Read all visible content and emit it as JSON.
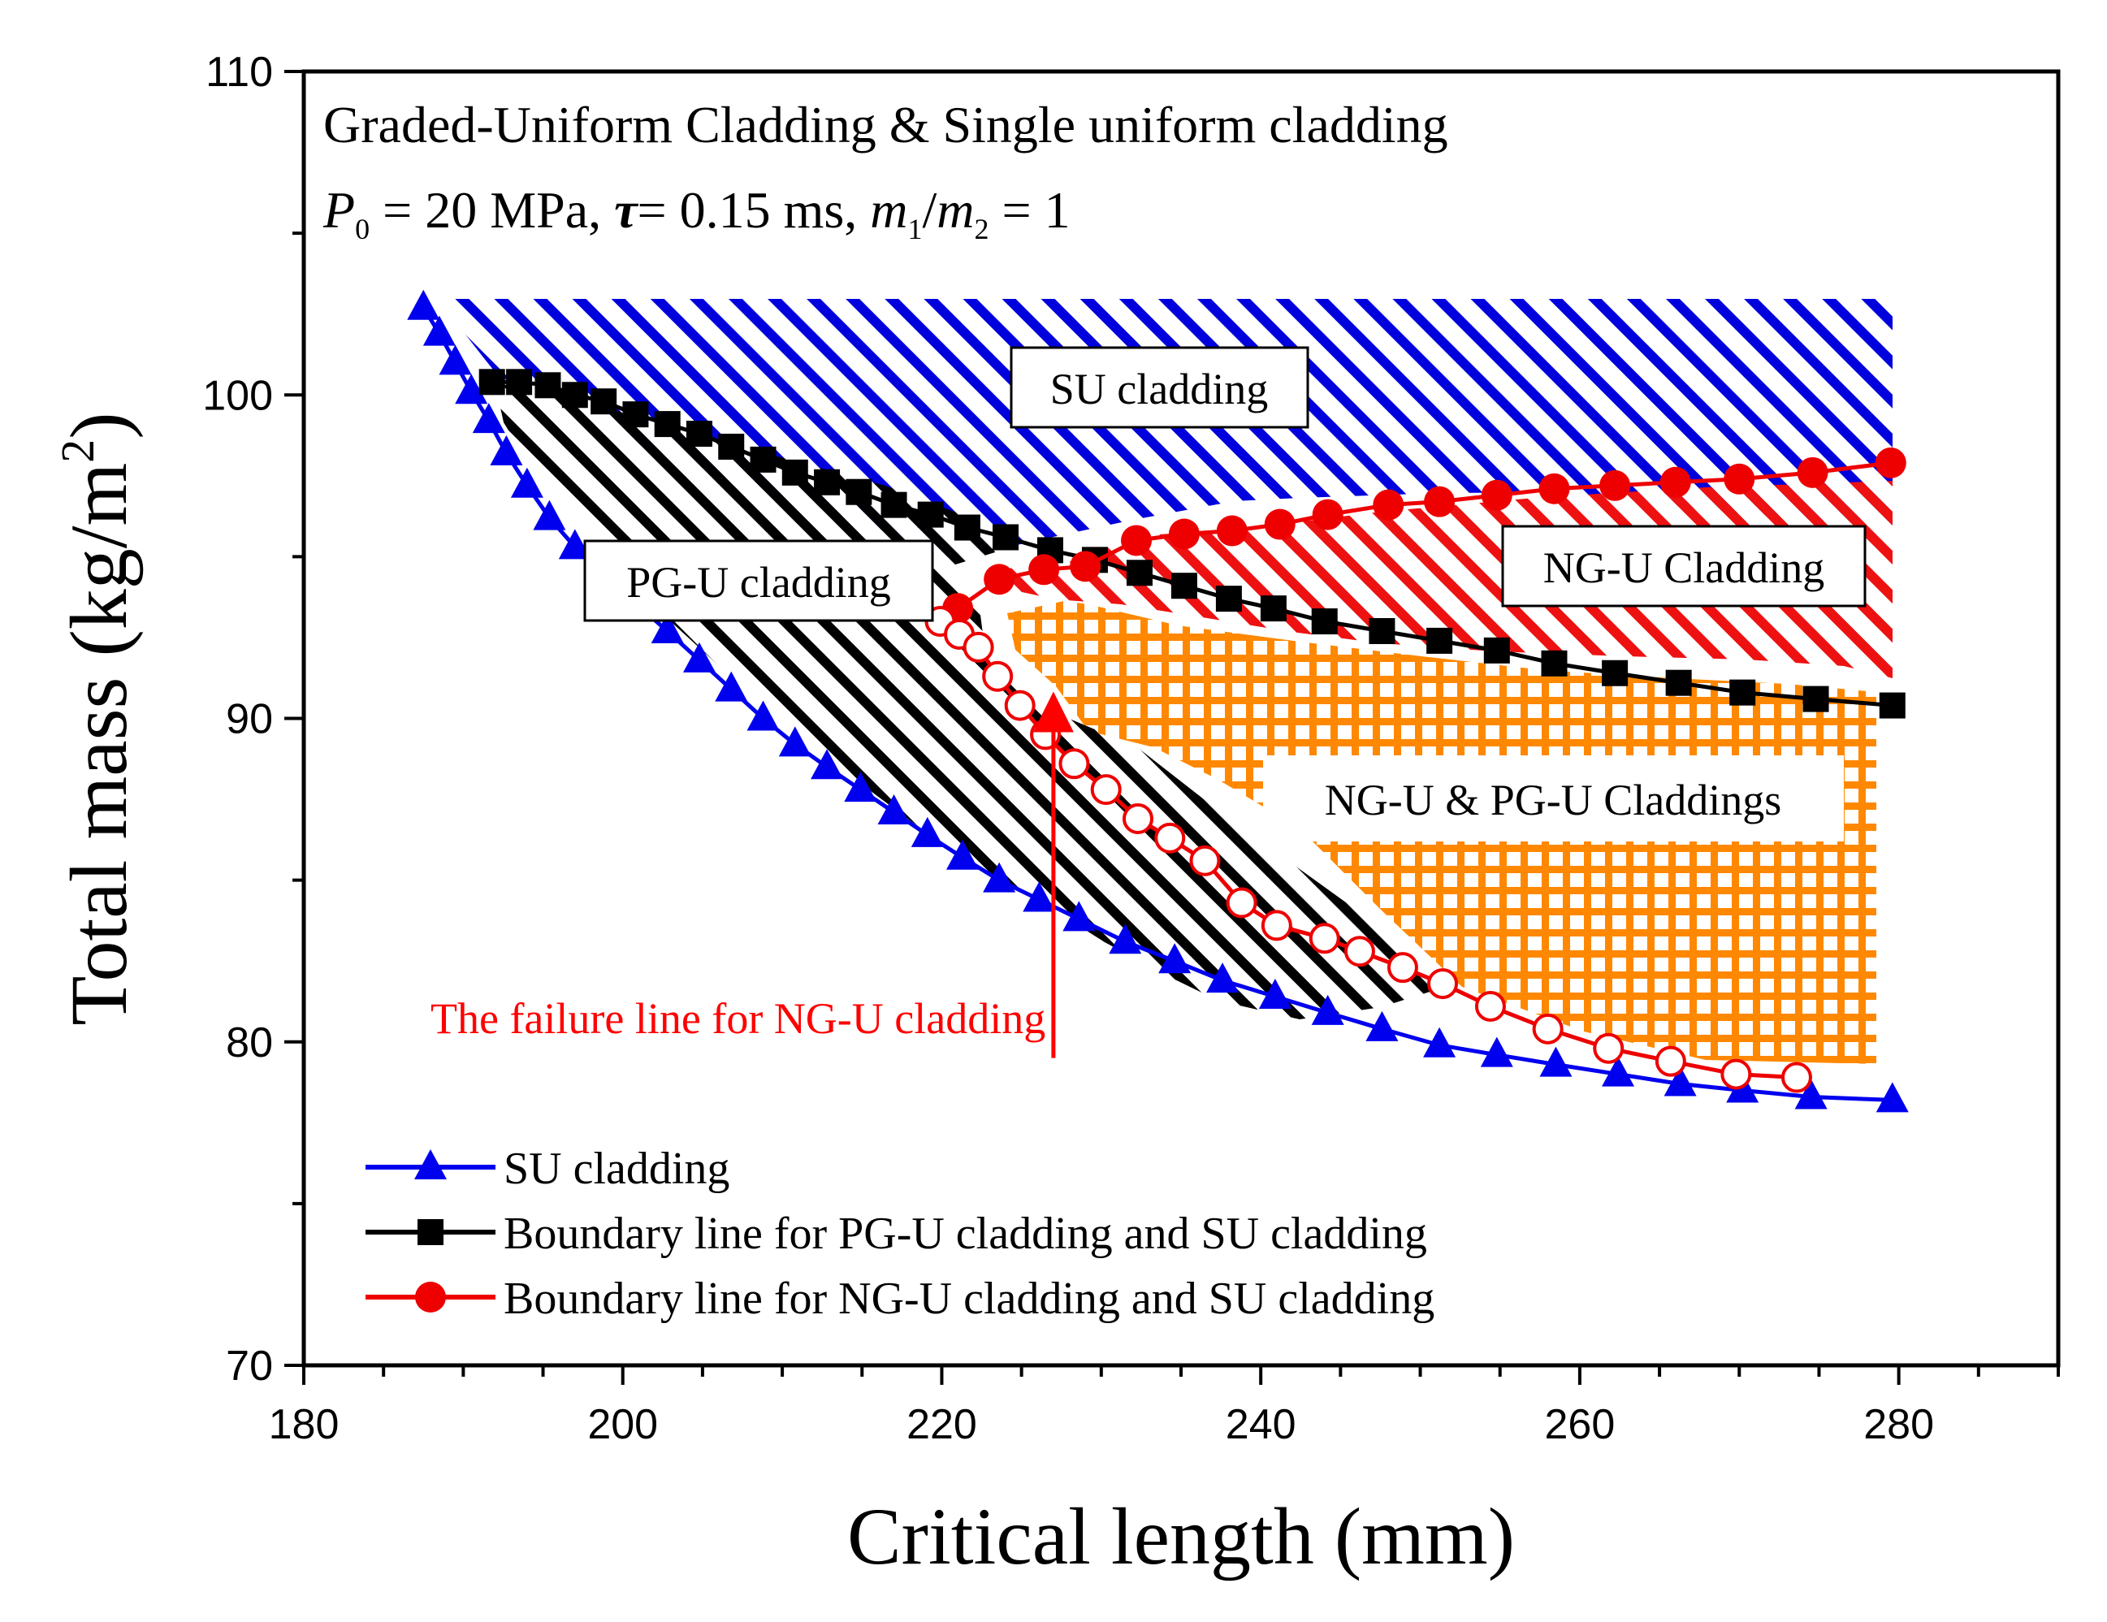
{
  "chart_data": {
    "type": "line",
    "title_line1": "Graded-Uniform Cladding & Single uniform cladding",
    "params": {
      "p_sym": "P",
      "p_sub": "0",
      "p_rest": " = 20 MPa, ",
      "tau_sym": "τ",
      "tau_rest": "= 0.15 ms, ",
      "m1_sym": "m",
      "m1_sub": "1",
      "slash": "/",
      "m2_sym": "m",
      "m2_sub": "2",
      "ratio_rest": " = 1"
    },
    "xlabel": "Critical length (mm)",
    "ylabel_main": "Total mass (kg/m",
    "ylabel_sup": "2",
    "ylabel_close": ")",
    "xlim": [
      180,
      290
    ],
    "ylim": [
      70,
      110
    ],
    "x_ticks": [
      "180",
      "200",
      "220",
      "240",
      "260",
      "280"
    ],
    "y_ticks": [
      "70",
      "80",
      "90",
      "100",
      "110"
    ],
    "regions": [
      {
        "name": "SU cladding",
        "color": "#0000dd"
      },
      {
        "name": "PG-U cladding",
        "color": "#000000"
      },
      {
        "name": "NG-U Cladding",
        "color": "#ee1111"
      },
      {
        "name": "NG-U & PG-U Claddings",
        "color": "#ff8800"
      }
    ],
    "annotation": {
      "text": "The failure line for NG-U cladding",
      "color": "#ff0000",
      "arrow_x": 227,
      "arrow_y_from": 79.5,
      "arrow_y_to": 90.2
    },
    "series": [
      {
        "name": "SU cladding",
        "color": "#0000ee",
        "marker": "triangle",
        "x": [
          187.5,
          188.5,
          189.5,
          190.5,
          191.6,
          192.7,
          194.0,
          195.4,
          197.0,
          198.7,
          200.7,
          202.8,
          204.8,
          206.8,
          208.8,
          210.8,
          212.8,
          214.9,
          217.0,
          219.1,
          221.3,
          223.6,
          226.1,
          228.6,
          231.5,
          234.6,
          237.6,
          240.9,
          244.2,
          247.6,
          251.2,
          254.8,
          258.5,
          262.4,
          266.3,
          270.2,
          274.5,
          279.6
        ],
        "y": [
          102.7,
          101.9,
          101.0,
          100.1,
          99.2,
          98.2,
          97.2,
          96.2,
          95.3,
          94.4,
          93.6,
          92.7,
          91.8,
          90.9,
          90.0,
          89.2,
          88.5,
          87.8,
          87.1,
          86.4,
          85.7,
          85.0,
          84.4,
          83.8,
          83.1,
          82.5,
          81.9,
          81.4,
          80.9,
          80.4,
          79.9,
          79.6,
          79.3,
          79.0,
          78.7,
          78.5,
          78.3,
          78.2
        ]
      },
      {
        "name": "Boundary line for PG-U cladding and SU cladding",
        "color": "#000000",
        "marker": "square",
        "x": [
          191.8,
          193.5,
          195.3,
          197.0,
          198.8,
          200.8,
          202.8,
          204.8,
          206.8,
          208.8,
          210.8,
          212.8,
          214.8,
          217.0,
          219.3,
          221.6,
          224.0,
          226.8,
          229.6,
          232.4,
          235.2,
          238.0,
          240.8,
          244.0,
          247.6,
          251.2,
          254.8,
          258.4,
          262.2,
          266.2,
          270.2,
          274.8,
          279.6
        ],
        "y": [
          100.4,
          100.4,
          100.3,
          100.0,
          99.8,
          99.4,
          99.1,
          98.8,
          98.4,
          98.0,
          97.6,
          97.3,
          97.0,
          96.6,
          96.3,
          95.9,
          95.6,
          95.2,
          94.9,
          94.5,
          94.1,
          93.7,
          93.4,
          93.0,
          92.7,
          92.4,
          92.1,
          91.7,
          91.4,
          91.1,
          90.8,
          90.6,
          90.4
        ]
      },
      {
        "name": "Boundary line for NG-U cladding and SU cladding",
        "color": "#ee0000",
        "marker": "circle",
        "x": [
          221.0,
          223.6,
          226.4,
          229.0,
          232.2,
          235.2,
          238.2,
          241.2,
          244.2,
          248.0,
          251.2,
          254.8,
          258.4,
          262.2,
          266.0,
          270.0,
          274.6,
          279.5
        ],
        "y": [
          93.4,
          94.3,
          94.6,
          94.7,
          95.5,
          95.7,
          95.8,
          96.0,
          96.3,
          96.6,
          96.7,
          96.9,
          97.1,
          97.2,
          97.3,
          97.4,
          97.6,
          97.9
        ]
      },
      {
        "name": "The failure line for NG-U cladding",
        "color": "#ee0000",
        "marker": "open-circle",
        "in_legend": false,
        "x": [
          219.9,
          221.1,
          222.3,
          223.5,
          224.9,
          226.5,
          228.3,
          230.3,
          232.3,
          234.3,
          236.5,
          238.8,
          241.0,
          244.0,
          246.2,
          248.9,
          251.4,
          254.4,
          258.0,
          261.8,
          265.7,
          269.8,
          273.6
        ],
        "y": [
          93.0,
          92.6,
          92.2,
          91.3,
          90.4,
          89.5,
          88.6,
          87.8,
          86.9,
          86.3,
          85.6,
          84.3,
          83.6,
          83.2,
          82.8,
          82.3,
          81.8,
          81.1,
          80.4,
          79.8,
          79.4,
          79.0,
          78.9
        ]
      }
    ]
  }
}
